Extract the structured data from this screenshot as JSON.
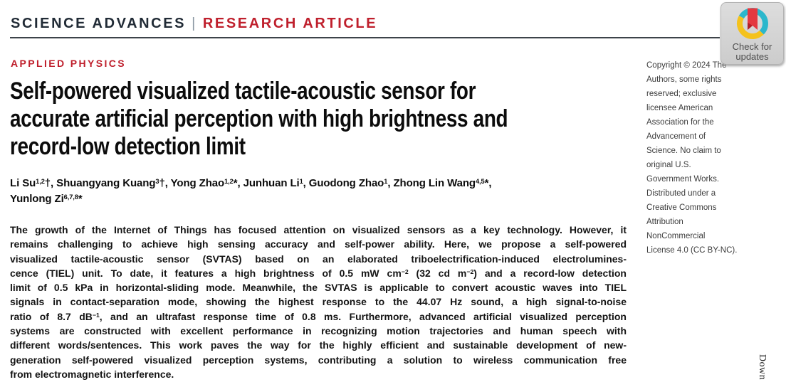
{
  "masthead": {
    "journal": "SCIENCE ADVANCES",
    "separator": "|",
    "article_type": "RESEARCH ARTICLE"
  },
  "section_label": "APPLIED PHYSICS",
  "title_lines": [
    "Self-powered visualized tactile-acoustic sensor for",
    "accurate artificial perception with high brightness and",
    "record-low detection limit"
  ],
  "author_lines": [
    [
      {
        "t": "Li Su"
      },
      {
        "t": "1,2",
        "sup": true
      },
      {
        "t": "†, Shuangyang Kuang"
      },
      {
        "t": "3",
        "sup": true
      },
      {
        "t": "†, Yong Zhao"
      },
      {
        "t": "1,2",
        "sup": true
      },
      {
        "t": "*, Junhuan Li"
      },
      {
        "t": "1",
        "sup": true
      },
      {
        "t": ", Guodong Zhao"
      },
      {
        "t": "1",
        "sup": true
      },
      {
        "t": ", Zhong Lin Wang"
      },
      {
        "t": "4,5",
        "sup": true
      },
      {
        "t": "*,"
      }
    ],
    [
      {
        "t": "Yunlong Zi"
      },
      {
        "t": "6,7,8",
        "sup": true
      },
      {
        "t": "*"
      }
    ]
  ],
  "abstract_lines": [
    [
      {
        "t": "The growth of the Internet of Things has focused attention on visualized sensors as a key technology. However, it"
      }
    ],
    [
      {
        "t": "remains challenging to achieve high sensing accuracy and self-power ability. Here, we propose a self-powered"
      }
    ],
    [
      {
        "t": "visualized tactile-acoustic sensor (SVTAS) based on an elaborated triboelectrification-induced electrolumines-"
      }
    ],
    [
      {
        "t": "cence (TIEL) unit. To date, it features a high brightness of 0.5 mW cm"
      },
      {
        "t": "−2",
        "sup": true
      },
      {
        "t": " (32 cd m"
      },
      {
        "t": "−2",
        "sup": true
      },
      {
        "t": ") and a record-low detection"
      }
    ],
    [
      {
        "t": "limit of 0.5 kPa in horizontal-sliding mode. Meanwhile, the SVTAS is applicable to convert acoustic waves into TIEL"
      }
    ],
    [
      {
        "t": "signals in contact-separation mode, showing the highest response to the 44.07 Hz sound, a high signal-to-noise"
      }
    ],
    [
      {
        "t": "ratio of 8.7 dB"
      },
      {
        "t": "−1",
        "sup": true
      },
      {
        "t": ", and an ultrafast response time of 0.8 ms. Furthermore, advanced artificial visualized perception"
      }
    ],
    [
      {
        "t": "systems are constructed with excellent performance in recognizing motion trajectories and human speech with"
      }
    ],
    [
      {
        "t": "different words/sentences. This work paves the way for the highly efficient and sustainable development of new-"
      }
    ],
    [
      {
        "t": "generation self-powered visualized perception systems, contributing a solution to wireless communication free"
      }
    ],
    [
      {
        "t": "from electromagnetic interference."
      }
    ]
  ],
  "copyright_lines": [
    "Copyright © 2024 The",
    "Authors, some rights",
    "reserved; exclusive",
    "licensee American",
    "Association for the",
    "Advancement of",
    "Science. No claim to",
    "original U.S.",
    "Government Works.",
    "Distributed under a",
    "Creative Commons",
    "Attribution",
    "NonCommercial",
    "License 4.0 (CC BY-NC)."
  ],
  "badge": {
    "line1": "Check for",
    "line2": "updates"
  },
  "vertical_text": "Down",
  "colors": {
    "accent_red": "#bf1f2c",
    "masthead_dark": "#212b36",
    "rule": "#3d4349",
    "body_text": "#141414",
    "sidebar_text": "#3c3c3c",
    "badge_bg": "#d3d3d3",
    "badge_text": "#4d4d4d",
    "crossmark_teal": "#2bb7cc",
    "crossmark_yellow": "#f4c21d",
    "crossmark_red": "#e43840",
    "crossmark_dark_red": "#b21f27"
  }
}
